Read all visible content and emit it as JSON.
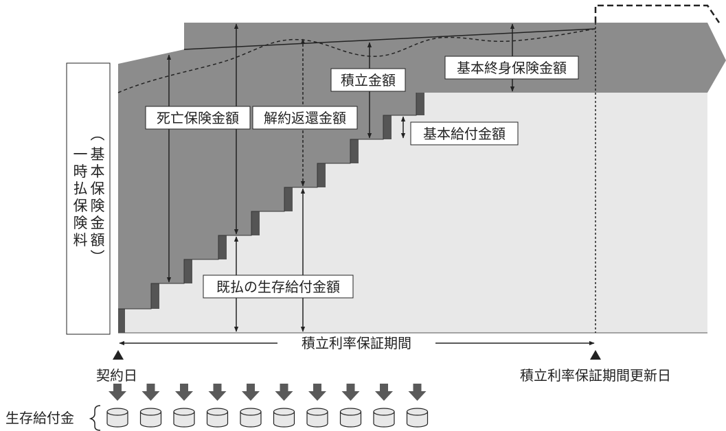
{
  "labels": {
    "death_benefit": "死亡保険金額",
    "surrender_value": "解約返還金額",
    "accumulated": "積立金額",
    "basic_lifetime_insurance": "基本終身保険金額",
    "basic_benefit": "基本給付金額",
    "paid_survival_benefit": "既払の生存給付金額",
    "guarantee_period": "積立利率保証期間",
    "contract_date": "契約日",
    "renewal_date": "積立利率保証期間更新日",
    "survival_benefit": "生存給付金"
  },
  "vertical_label": {
    "paren_open": "︵",
    "main": [
      "基",
      "本",
      "保",
      "険",
      "金",
      "額"
    ],
    "paren_close": "︶",
    "sub": [
      "一",
      "時",
      "払",
      "保",
      "険",
      "料"
    ]
  },
  "colors": {
    "dark_band": "#8c8c8c",
    "light_area": "#e8e8e8",
    "step_riser": "#555555",
    "arrow_fill": "#5a5a5a",
    "line": "#222222"
  },
  "survival_payments": 10
}
